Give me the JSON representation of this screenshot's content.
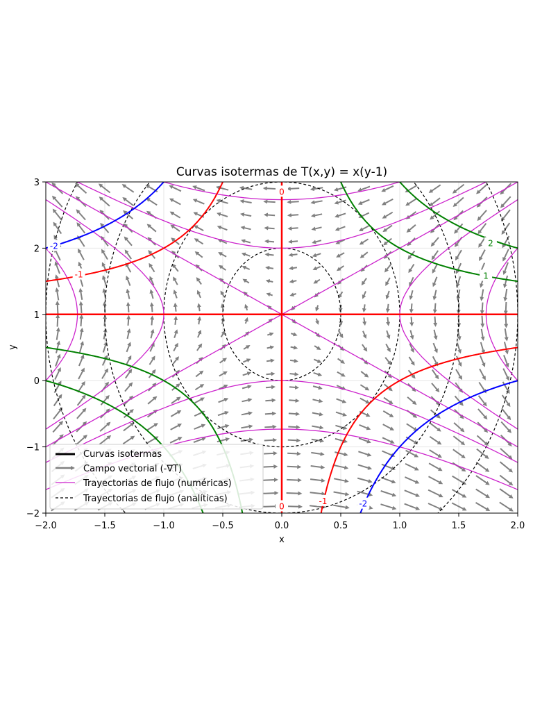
{
  "chart_data": {
    "type": "contour+quiver",
    "title": "Curvas isotermas de T(x,y) = x(y-1)",
    "xlabel": "x",
    "ylabel": "y",
    "xlim": [
      -2.0,
      2.0
    ],
    "ylim": [
      -2,
      3
    ],
    "xticks": [
      "−2.0",
      "−1.5",
      "−1.0",
      "−0.5",
      "0.0",
      "0.5",
      "1.0",
      "1.5",
      "2.0"
    ],
    "xtick_values": [
      -2.0,
      -1.5,
      -1.0,
      -0.5,
      0.0,
      0.5,
      1.0,
      1.5,
      2.0
    ],
    "yticks": [
      "−2",
      "−1",
      "0",
      "1",
      "2",
      "3"
    ],
    "ytick_values": [
      -2,
      -1,
      0,
      1,
      2,
      3
    ],
    "grid": true,
    "legend_position": "lower-left",
    "legend": [
      {
        "label": "Curvas isotermas",
        "style": "thick-black-line"
      },
      {
        "label": "Campo vectorial (-∇T)",
        "style": "gray-arrow"
      },
      {
        "label": "Trayectorias de flujo (numéricas)",
        "style": "magenta-line"
      },
      {
        "label": "Trayectorias de flujo (analíticas)",
        "style": "black-dashed-line"
      }
    ],
    "isotherms": [
      {
        "level": -2,
        "color": "#0000ff",
        "label": "-2"
      },
      {
        "level": -1,
        "color": "#ff0000",
        "label": "-1"
      },
      {
        "level": 0,
        "color": "#ff0000",
        "label": "0"
      },
      {
        "level": 1,
        "color": "#008000",
        "label": "1"
      },
      {
        "level": 2,
        "color": "#008000",
        "label": "2"
      }
    ],
    "contour_labels": [
      {
        "text": "-2",
        "x": -1.93,
        "y": 2.03,
        "color": "#0000ff"
      },
      {
        "text": "-1",
        "x": -1.72,
        "y": 1.6,
        "color": "#ff0000"
      },
      {
        "text": "0",
        "x": 0.0,
        "y": 2.85,
        "color": "#ff0000"
      },
      {
        "text": "0",
        "x": 0.0,
        "y": -1.9,
        "color": "#ff0000"
      },
      {
        "text": "1",
        "x": 1.73,
        "y": 1.58,
        "color": "#008000"
      },
      {
        "text": "2",
        "x": 1.77,
        "y": 2.07,
        "color": "#008000"
      },
      {
        "text": "-1",
        "x": 0.35,
        "y": -1.82,
        "color": "#ff0000"
      },
      {
        "text": "-2",
        "x": 0.69,
        "y": -1.86,
        "color": "#0000ff"
      }
    ],
    "analytic_flow_ellipse_constants": [
      0.25,
      1.0,
      2.25,
      4.0
    ],
    "numeric_flow_constants": [
      -3.0,
      -1.0,
      0.0,
      1.0,
      3.0
    ]
  }
}
